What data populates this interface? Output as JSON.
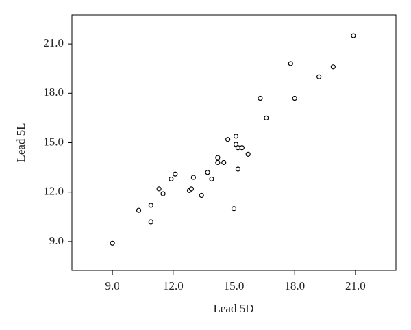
{
  "chart_data": {
    "type": "scatter",
    "xlabel": "Lead 5D",
    "ylabel": "Lead 5L",
    "x": [
      9.0,
      10.3,
      10.9,
      10.9,
      11.3,
      11.5,
      11.9,
      12.1,
      12.8,
      12.9,
      13.0,
      13.4,
      13.7,
      13.9,
      14.2,
      14.2,
      14.5,
      14.7,
      15.1,
      15.1,
      15.2,
      15.4,
      15.7,
      15.2,
      15.0,
      16.3,
      16.6,
      17.8,
      18.0,
      19.2,
      19.9,
      20.9
    ],
    "values": [
      8.9,
      10.9,
      11.2,
      10.2,
      12.2,
      11.9,
      12.8,
      13.1,
      12.1,
      12.2,
      12.9,
      11.8,
      13.2,
      12.8,
      14.1,
      13.8,
      13.8,
      15.2,
      15.4,
      14.9,
      14.7,
      14.7,
      14.3,
      13.4,
      11.0,
      17.7,
      16.5,
      19.8,
      17.7,
      19.0,
      19.6,
      21.5
    ],
    "color": "#000000",
    "xlim": [
      7.0,
      23.0
    ],
    "ylim": [
      7.25,
      22.75
    ],
    "xticks": [
      {
        "value": 9,
        "label": "9.0"
      },
      {
        "value": 12,
        "label": "12.0"
      },
      {
        "value": 15,
        "label": "15.0"
      },
      {
        "value": 18,
        "label": "18.0"
      },
      {
        "value": 21,
        "label": "21.0"
      }
    ],
    "yticks": [
      {
        "value": 9,
        "label": "9.0"
      },
      {
        "value": 12,
        "label": "12.0"
      },
      {
        "value": 15,
        "label": "15.0"
      },
      {
        "value": 18,
        "label": "18.0"
      },
      {
        "value": 21,
        "label": "21.0"
      }
    ]
  }
}
